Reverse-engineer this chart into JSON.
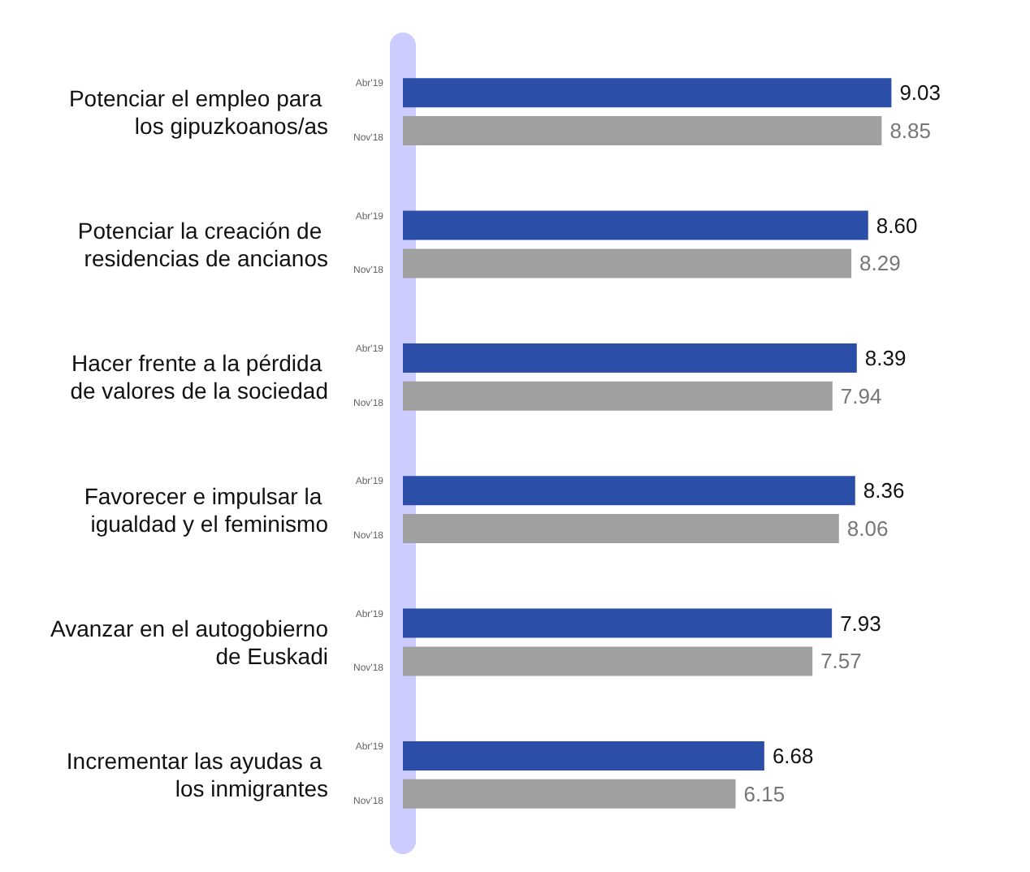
{
  "chart_data": {
    "type": "bar",
    "orientation": "horizontal",
    "categories": [
      "Potenciar el empleo para los gipuzkoanos/as",
      "Potenciar la creación de residencias de ancianos",
      "Hacer frente a la pérdida de valores de la sociedad",
      "Favorecer e impulsar la igualdad y el feminismo",
      "Avanzar en el autogobierno de Euskadi",
      "Incrementar las ayudas a los inmigrantes"
    ],
    "series": [
      {
        "name": "Abr'19",
        "color": "#2b4ea8",
        "values": [
          9.03,
          8.6,
          8.39,
          8.36,
          7.93,
          6.68
        ],
        "value_labels": [
          "9.03",
          "8.60",
          "8.39",
          "8.36",
          "7.93",
          "6.68"
        ]
      },
      {
        "name": "Nov'18",
        "color": "#a0a0a0",
        "values": [
          8.85,
          8.29,
          7.94,
          8.06,
          7.57,
          6.15
        ],
        "value_labels": [
          "8.85",
          "8.29",
          "7.94",
          "8.06",
          "7.57",
          "6.15"
        ]
      }
    ],
    "legend": false
  }
}
